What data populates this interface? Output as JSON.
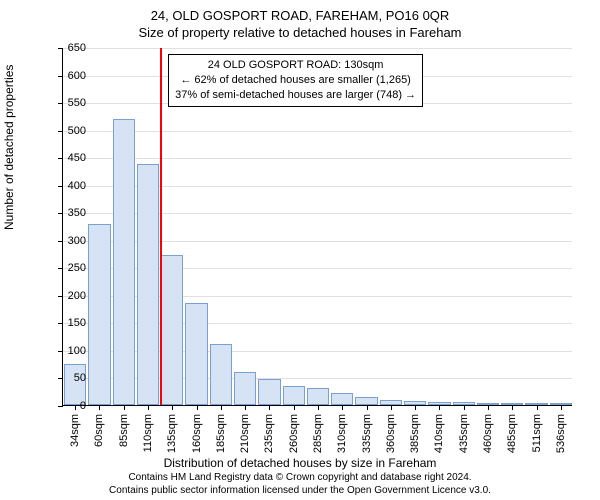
{
  "title_line1": "24, OLD GOSPORT ROAD, FAREHAM, PO16 0QR",
  "title_line2": "Size of property relative to detached houses in Fareham",
  "ylabel": "Number of detached properties",
  "xlabel": "Distribution of detached houses by size in Fareham",
  "footer_line1": "Contains HM Land Registry data © Crown copyright and database right 2024.",
  "footer_line2": "Contains public sector information licensed under the Open Government Licence v3.0.",
  "chart": {
    "type": "histogram",
    "ymax": 650,
    "ytick_step": 50,
    "bar_fill": "#d6e3f4",
    "bar_stroke": "#7ba0d0",
    "grid_color": "#e0e0e0",
    "marker_color": "#ff0000",
    "marker_x_category_index": 4,
    "annotation": {
      "line1": "24 OLD GOSPORT ROAD: 130sqm",
      "line2": "← 62% of detached houses are smaller (1,265)",
      "line3": "37% of semi-detached houses are larger (748) →"
    },
    "categories": [
      "34sqm",
      "60sqm",
      "85sqm",
      "110sqm",
      "135sqm",
      "160sqm",
      "185sqm",
      "210sqm",
      "235sqm",
      "260sqm",
      "285sqm",
      "310sqm",
      "335sqm",
      "360sqm",
      "385sqm",
      "410sqm",
      "435sqm",
      "460sqm",
      "485sqm",
      "511sqm",
      "536sqm"
    ],
    "values": [
      75,
      328,
      520,
      438,
      272,
      185,
      110,
      60,
      48,
      35,
      30,
      22,
      15,
      10,
      8,
      6,
      5,
      3,
      2,
      2,
      1
    ]
  }
}
